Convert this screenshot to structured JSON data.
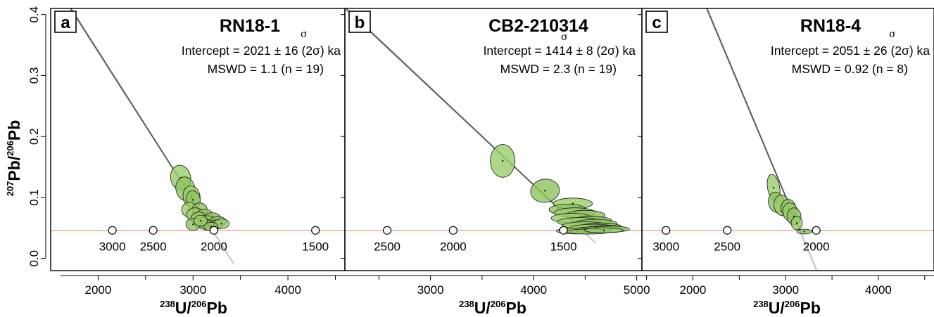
{
  "figure": {
    "ylabel": {
      "sup1": "207",
      "base1": "Pb/",
      "sup2": "206",
      "base2": "Pb"
    },
    "xlabel": {
      "sup1": "238",
      "base1": "U/",
      "sup2": "206",
      "base2": "Pb"
    },
    "y_tick_labels": [
      "0.0",
      "0.1",
      "0.2",
      "0.3",
      "0.4"
    ]
  },
  "colors": {
    "ellipse_fill": "#9acd6a",
    "ellipse_fill_alt": "#8fc25f",
    "regression_line": "#333333",
    "error_band": "#bdbdbd",
    "concordia": "#ee9980",
    "frame": "#000000"
  },
  "chart_data": [
    {
      "type": "scatter",
      "letter": "a",
      "title": "RN18-1",
      "sigma": "σ",
      "intercept_text": "Intercept = 2021 ± 16 (2σ) ka",
      "mswd_text": "MSWD = 1.1 (n = 19)",
      "xlim": [
        1500,
        4600
      ],
      "ylim": [
        -0.02,
        0.41
      ],
      "x_ticks": [
        2000,
        3000,
        4000
      ],
      "x_tick_labels": [
        "2000",
        "3000",
        "4000"
      ],
      "regression": {
        "p1": [
          1690,
          0.415
        ],
        "p2": [
          3180,
          0.052
        ],
        "band": 0.004
      },
      "concordia_y": 0.046,
      "age_markers": [
        {
          "x": 2150,
          "label": "3000"
        },
        {
          "x": 2580,
          "label": "2500"
        },
        {
          "x": 3220,
          "label": "2000"
        },
        {
          "x": 4290,
          "label": "1500"
        }
      ],
      "ellipses": [
        {
          "x": 2870,
          "y": 0.132,
          "rx": 105,
          "ry": 0.021,
          "angle": 12
        },
        {
          "x": 2920,
          "y": 0.114,
          "rx": 100,
          "ry": 0.02,
          "angle": 14
        },
        {
          "x": 2985,
          "y": 0.101,
          "rx": 90,
          "ry": 0.018,
          "angle": 10
        },
        {
          "x": 3000,
          "y": 0.096,
          "rx": 75,
          "ry": 0.015,
          "angle": 8
        },
        {
          "x": 2960,
          "y": 0.08,
          "rx": 80,
          "ry": 0.012,
          "angle": 6
        },
        {
          "x": 3070,
          "y": 0.079,
          "rx": 80,
          "ry": 0.012,
          "angle": 4
        },
        {
          "x": 3020,
          "y": 0.072,
          "rx": 90,
          "ry": 0.011,
          "angle": 3
        },
        {
          "x": 3120,
          "y": 0.071,
          "rx": 85,
          "ry": 0.01,
          "angle": 3
        },
        {
          "x": 3060,
          "y": 0.066,
          "rx": 80,
          "ry": 0.01,
          "angle": 2
        },
        {
          "x": 3200,
          "y": 0.065,
          "rx": 95,
          "ry": 0.01,
          "angle": 0
        },
        {
          "x": 3150,
          "y": 0.061,
          "rx": 90,
          "ry": 0.009,
          "angle": 0
        },
        {
          "x": 3260,
          "y": 0.06,
          "rx": 90,
          "ry": 0.009,
          "angle": 0
        },
        {
          "x": 3100,
          "y": 0.058,
          "rx": 85,
          "ry": 0.009,
          "angle": 0
        },
        {
          "x": 3230,
          "y": 0.055,
          "rx": 85,
          "ry": 0.008,
          "angle": 0
        },
        {
          "x": 3160,
          "y": 0.054,
          "rx": 80,
          "ry": 0.008,
          "angle": 0
        },
        {
          "x": 3000,
          "y": 0.056,
          "rx": 75,
          "ry": 0.01,
          "angle": 0
        },
        {
          "x": 3300,
          "y": 0.057,
          "rx": 80,
          "ry": 0.008,
          "angle": 0
        },
        {
          "x": 3190,
          "y": 0.052,
          "rx": 75,
          "ry": 0.007,
          "angle": 0
        },
        {
          "x": 3080,
          "y": 0.062,
          "rx": 70,
          "ry": 0.009,
          "angle": 0
        }
      ]
    },
    {
      "type": "scatter",
      "letter": "b",
      "title": "CB2-210314",
      "sigma": "σ",
      "intercept_text": "Intercept = 1414 ± 8 (2σ) ka",
      "mswd_text": "MSWD = 2.3 (n = 19)",
      "xlim": [
        2170,
        5050
      ],
      "ylim": [
        -0.02,
        0.41
      ],
      "x_ticks": [
        3000,
        4000,
        5000
      ],
      "x_tick_labels": [
        "3000",
        "4000",
        "5000"
      ],
      "regression": {
        "p1": [
          2210,
          0.405
        ],
        "p2": [
          4350,
          0.065
        ],
        "band": 0.003
      },
      "concordia_y": 0.046,
      "age_markers": [
        {
          "x": 2580,
          "label": "2500"
        },
        {
          "x": 3220,
          "label": "2000"
        },
        {
          "x": 4290,
          "label": "1500"
        }
      ],
      "ellipses": [
        {
          "x": 3700,
          "y": 0.16,
          "rx": 120,
          "ry": 0.027,
          "angle": 0
        },
        {
          "x": 4110,
          "y": 0.111,
          "rx": 140,
          "ry": 0.019,
          "angle": 8
        },
        {
          "x": 4380,
          "y": 0.09,
          "rx": 190,
          "ry": 0.009,
          "angle": 0
        },
        {
          "x": 4330,
          "y": 0.08,
          "rx": 180,
          "ry": 0.009,
          "angle": 0
        },
        {
          "x": 4400,
          "y": 0.075,
          "rx": 200,
          "ry": 0.008,
          "angle": 0
        },
        {
          "x": 4500,
          "y": 0.071,
          "rx": 190,
          "ry": 0.008,
          "angle": 0
        },
        {
          "x": 4370,
          "y": 0.066,
          "rx": 200,
          "ry": 0.008,
          "angle": 0
        },
        {
          "x": 4560,
          "y": 0.062,
          "rx": 200,
          "ry": 0.007,
          "angle": 0
        },
        {
          "x": 4440,
          "y": 0.06,
          "rx": 210,
          "ry": 0.007,
          "angle": 0
        },
        {
          "x": 4600,
          "y": 0.057,
          "rx": 210,
          "ry": 0.007,
          "angle": 0
        },
        {
          "x": 4500,
          "y": 0.054,
          "rx": 220,
          "ry": 0.006,
          "angle": 0
        },
        {
          "x": 4650,
          "y": 0.052,
          "rx": 200,
          "ry": 0.006,
          "angle": 0
        },
        {
          "x": 4580,
          "y": 0.05,
          "rx": 230,
          "ry": 0.006,
          "angle": 0
        },
        {
          "x": 4700,
          "y": 0.049,
          "rx": 200,
          "ry": 0.005,
          "angle": 0
        },
        {
          "x": 4620,
          "y": 0.047,
          "rx": 220,
          "ry": 0.005,
          "angle": 0
        },
        {
          "x": 4420,
          "y": 0.045,
          "rx": 200,
          "ry": 0.005,
          "angle": 0
        },
        {
          "x": 4750,
          "y": 0.048,
          "rx": 180,
          "ry": 0.005,
          "angle": 0
        },
        {
          "x": 4530,
          "y": 0.044,
          "rx": 210,
          "ry": 0.004,
          "angle": 0
        },
        {
          "x": 4680,
          "y": 0.046,
          "rx": 190,
          "ry": 0.004,
          "angle": 0
        }
      ]
    },
    {
      "type": "scatter",
      "letter": "c",
      "title": "RN18-4",
      "sigma": "σ",
      "intercept_text": "Intercept = 2051 ± 26 (2σ) ka",
      "mswd_text": "MSWD = 0.92 (n = 8)",
      "xlim": [
        1450,
        4600
      ],
      "ylim": [
        -0.02,
        0.41
      ],
      "x_ticks": [
        2000,
        3000,
        4000
      ],
      "x_tick_labels": [
        "2000",
        "3000",
        "4000"
      ],
      "regression": {
        "p1": [
          2150,
          0.41
        ],
        "p2": [
          3170,
          0.04
        ],
        "band": 0.006
      },
      "concordia_y": 0.046,
      "age_markers": [
        {
          "x": 1710,
          "label": "3000"
        },
        {
          "x": 2370,
          "label": "2500"
        },
        {
          "x": 3330,
          "label": "2000"
        }
      ],
      "ellipses": [
        {
          "x": 2870,
          "y": 0.116,
          "rx": 65,
          "ry": 0.022,
          "angle": 10
        },
        {
          "x": 2900,
          "y": 0.092,
          "rx": 85,
          "ry": 0.017,
          "angle": 12
        },
        {
          "x": 2960,
          "y": 0.087,
          "rx": 85,
          "ry": 0.017,
          "angle": 10
        },
        {
          "x": 3030,
          "y": 0.082,
          "rx": 80,
          "ry": 0.015,
          "angle": 6
        },
        {
          "x": 3050,
          "y": 0.076,
          "rx": 80,
          "ry": 0.015,
          "angle": 6
        },
        {
          "x": 3090,
          "y": 0.069,
          "rx": 75,
          "ry": 0.014,
          "angle": 4
        },
        {
          "x": 3120,
          "y": 0.058,
          "rx": 60,
          "ry": 0.011,
          "angle": 0
        },
        {
          "x": 3200,
          "y": 0.044,
          "rx": 80,
          "ry": 0.004,
          "angle": 0
        }
      ]
    }
  ]
}
